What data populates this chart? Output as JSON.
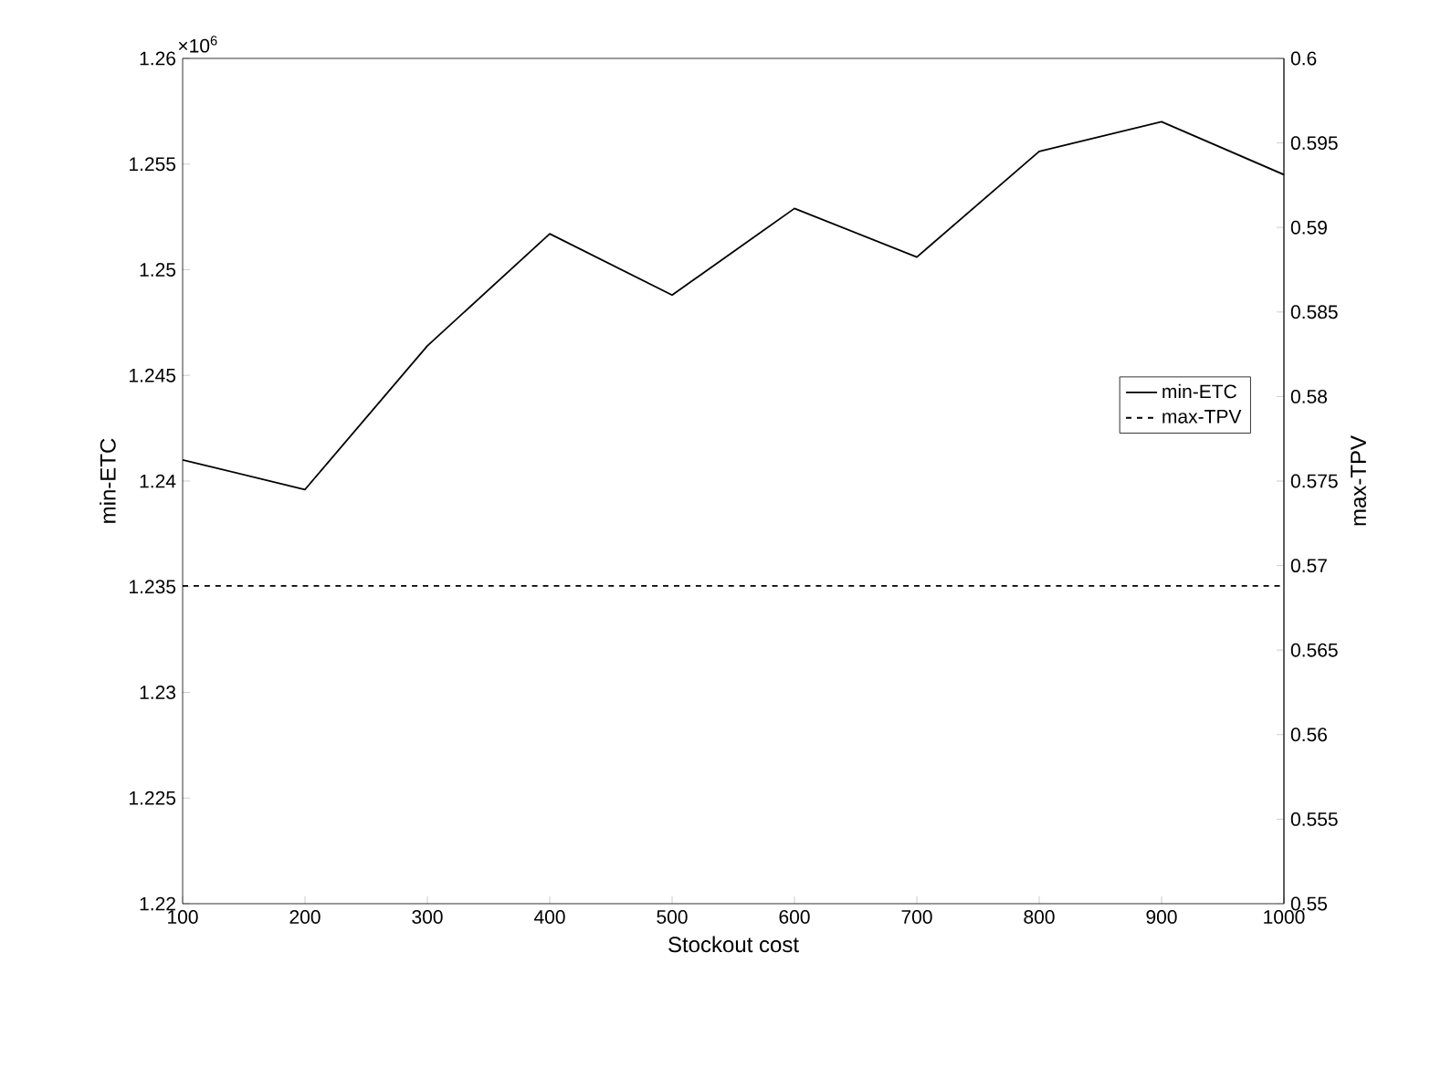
{
  "chart_data": {
    "type": "line",
    "xlabel": "Stockout cost",
    "ylabel": "min-ETC",
    "y2label": "max-TPV",
    "annotations": [
      "×10$^{6}$"
    ],
    "x": [
      100,
      200,
      300,
      400,
      500,
      600,
      700,
      800,
      900,
      1000
    ],
    "series": [
      {
        "name": "min-ETC",
        "color": "#000000",
        "line_style": "solid",
        "values": [
          1.241,
          1.2396,
          1.2464,
          1.2517,
          1.2488,
          1.2529,
          1.2506,
          1.2556,
          1.257,
          1.2545
        ]
      },
      {
        "name": "max-TPV",
        "color": "#000000",
        "line_style": "dashed",
        "axis": "y2",
        "values": [
          0.5688,
          0.5688,
          0.5688,
          0.5688,
          0.5688,
          0.5688,
          0.5688,
          0.5688,
          0.5688,
          0.5688
        ]
      }
    ],
    "xlim": [
      100,
      1000
    ],
    "xticks": [
      100,
      200,
      300,
      400,
      500,
      600,
      700,
      800,
      900,
      1000
    ],
    "ylim": [
      1.22,
      1.26
    ],
    "yticks": [
      1.22,
      1.225,
      1.23,
      1.235,
      1.24,
      1.245,
      1.25,
      1.255,
      1.26
    ],
    "y2lim": [
      0.55,
      0.6
    ],
    "y2ticks": [
      0.55,
      0.555,
      0.56,
      0.565,
      0.57,
      0.575,
      0.58,
      0.585,
      0.59,
      0.595,
      0.6
    ],
    "grid": false,
    "legend": "right"
  }
}
